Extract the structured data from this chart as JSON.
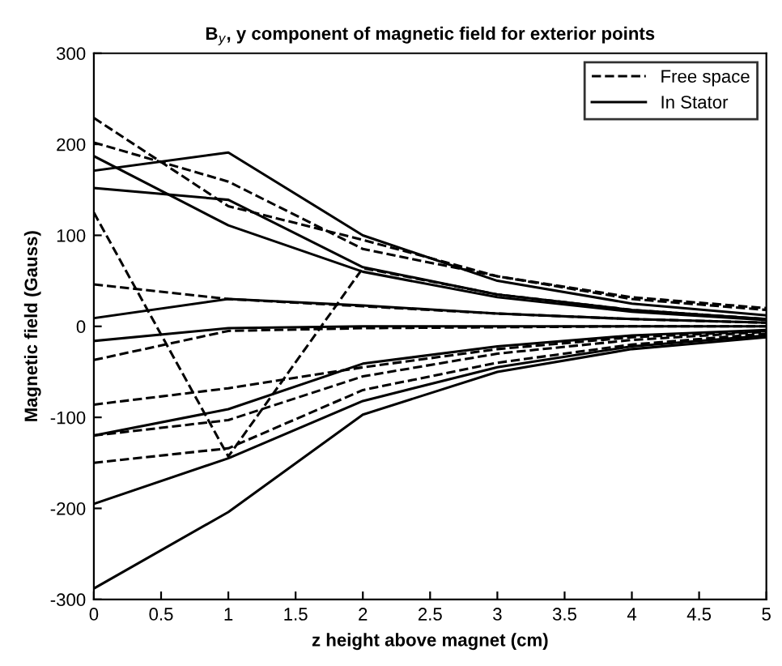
{
  "chart_data": {
    "type": "line",
    "title": "B$_{y}$, y component of magnetic field for exterior points",
    "xlabel": "z height above magnet (cm)",
    "ylabel": "Magnetic field (Gauss)",
    "x": [
      0,
      1,
      2,
      3,
      4,
      5
    ],
    "xlim": [
      0,
      5
    ],
    "xticks": [
      0,
      0.5,
      1,
      1.5,
      2,
      2.5,
      3,
      3.5,
      4,
      4.5,
      5
    ],
    "ylim": [
      -300,
      300
    ],
    "yticks": [
      -300,
      -200,
      -100,
      0,
      100,
      200,
      300
    ],
    "grid": false,
    "legend": "top right",
    "marker": "none",
    "series": [
      {
        "name": "Free space",
        "color": "#000000",
        "line_style": "dashed",
        "values": [
          202,
          159,
          85,
          55,
          30,
          18
        ]
      },
      {
        "color": "#000000",
        "line_style": "dashed",
        "values": [
          229,
          132,
          95,
          55,
          32,
          20
        ]
      },
      {
        "color": "#000000",
        "line_style": "dashed",
        "values": [
          125,
          -143,
          64,
          35,
          18,
          8
        ]
      },
      {
        "color": "#000000",
        "line_style": "dashed",
        "values": [
          46,
          30,
          22,
          14,
          8,
          4
        ]
      },
      {
        "color": "#000000",
        "line_style": "dashed",
        "values": [
          -37,
          -5,
          -2,
          -1,
          0,
          0
        ]
      },
      {
        "color": "#000000",
        "line_style": "dashed",
        "values": [
          -86,
          -68,
          -45,
          -25,
          -12,
          -5
        ]
      },
      {
        "color": "#000000",
        "line_style": "dashed",
        "values": [
          -120,
          -103,
          -55,
          -30,
          -15,
          -6
        ]
      },
      {
        "color": "#000000",
        "line_style": "dashed",
        "values": [
          -150,
          -134,
          -70,
          -40,
          -20,
          -8
        ]
      },
      {
        "name": "In Stator",
        "color": "#000000",
        "line_style": "solid",
        "values": [
          171,
          191,
          100,
          50,
          25,
          12
        ]
      },
      {
        "color": "#000000",
        "line_style": "solid",
        "values": [
          152,
          139,
          65,
          35,
          18,
          8
        ]
      },
      {
        "color": "#000000",
        "line_style": "solid",
        "values": [
          187,
          111,
          60,
          32,
          16,
          7
        ]
      },
      {
        "color": "#000000",
        "line_style": "solid",
        "values": [
          9,
          30,
          23,
          14,
          8,
          4
        ]
      },
      {
        "color": "#000000",
        "line_style": "solid",
        "values": [
          -16,
          -2,
          0,
          0,
          0,
          0
        ]
      },
      {
        "color": "#000000",
        "line_style": "solid",
        "values": [
          -120,
          -91,
          -41,
          -22,
          -10,
          -4
        ]
      },
      {
        "color": "#000000",
        "line_style": "solid",
        "values": [
          -195,
          -145,
          -82,
          -45,
          -22,
          -10
        ]
      },
      {
        "color": "#000000",
        "line_style": "solid",
        "values": [
          -288,
          -204,
          -97,
          -50,
          -25,
          -12
        ]
      }
    ]
  }
}
